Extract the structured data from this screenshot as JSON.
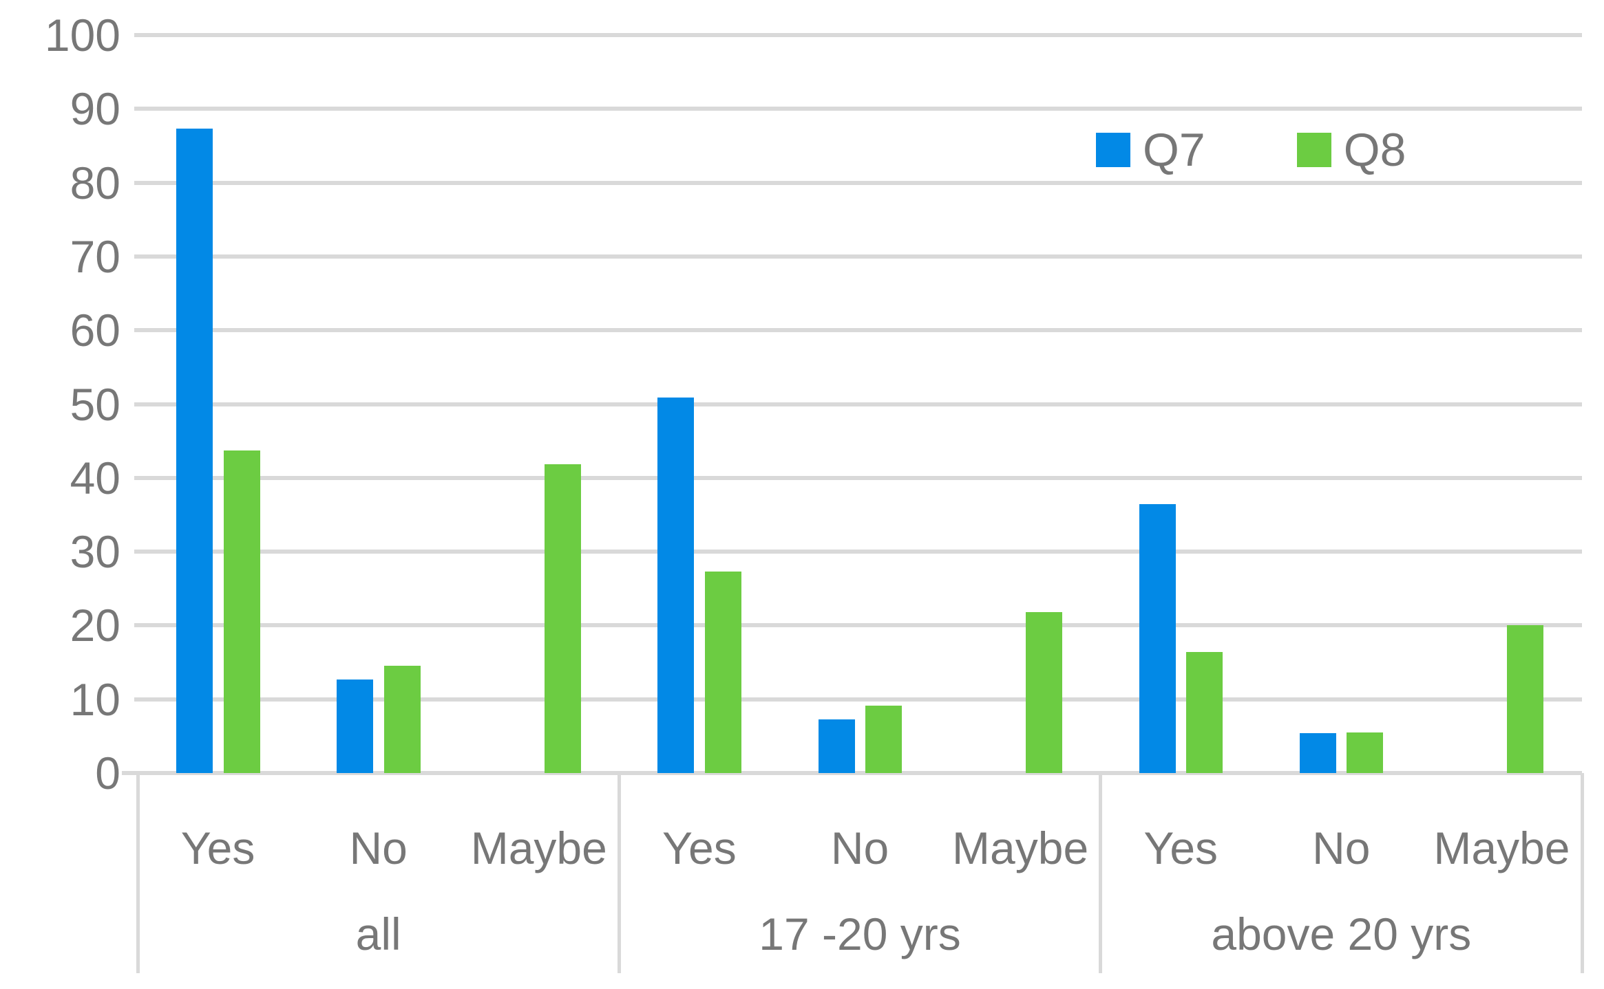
{
  "chart_data": {
    "type": "bar",
    "title": "",
    "groups": [
      "all",
      "17 -20 yrs",
      "above 20 yrs"
    ],
    "categories": [
      "Yes",
      "No",
      "Maybe"
    ],
    "series": [
      {
        "name": "Q7",
        "color": "#0289E6",
        "values": [
          [
            87.3,
            12.7,
            0
          ],
          [
            50.9,
            7.3,
            0
          ],
          [
            36.4,
            5.4,
            0
          ]
        ]
      },
      {
        "name": "Q8",
        "color": "#6CCC42",
        "values": [
          [
            43.7,
            14.5,
            41.8
          ],
          [
            27.3,
            9.1,
            21.8
          ],
          [
            16.4,
            5.5,
            20
          ]
        ]
      }
    ],
    "ylim": [
      0,
      100
    ],
    "ytick_step": 10,
    "ytick_labels": [
      "0",
      "10",
      "20",
      "30",
      "40",
      "50",
      "60",
      "70",
      "80",
      "90",
      "100"
    ],
    "grid": "horizontal",
    "legend_position": "inside-top-right",
    "colors": {
      "grid": "#D9D9D9",
      "axis_text": "#777777",
      "background": "#FFFFFF"
    }
  }
}
